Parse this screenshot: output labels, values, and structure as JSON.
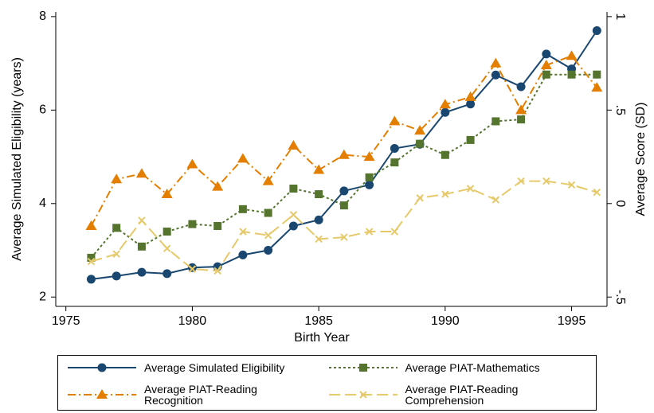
{
  "chart_data": {
    "type": "line",
    "x_label": "Birth Year",
    "y_label": "Average Simulated Eligibility (years)",
    "y2_label": "Average Score (SD)",
    "x": [
      1976,
      1977,
      1978,
      1979,
      1980,
      1981,
      1982,
      1983,
      1984,
      1985,
      1986,
      1987,
      1988,
      1989,
      1990,
      1991,
      1992,
      1993,
      1994,
      1995,
      1996
    ],
    "xlim": [
      1974.6,
      1996.4
    ],
    "xticks": [
      1975,
      1980,
      1985,
      1990,
      1995
    ],
    "ylim": [
      1.8,
      8.1
    ],
    "yticks": [
      2,
      4,
      6,
      8
    ],
    "y2lim": [
      -0.55,
      1.025
    ],
    "y2ticks": [
      {
        "value": -0.5,
        "label": "-.5"
      },
      0,
      {
        "value": 0.5,
        "label": ".5"
      },
      1
    ],
    "series": [
      {
        "name": "Average Simulated Eligibility",
        "color": "#1a476f",
        "marker": "circle",
        "dash": "solid",
        "axis": "y",
        "values": [
          2.38,
          2.45,
          2.53,
          2.5,
          2.63,
          2.65,
          2.9,
          3.0,
          3.52,
          3.65,
          4.27,
          4.4,
          5.18,
          5.27,
          5.95,
          6.13,
          6.75,
          6.5,
          7.2,
          6.88,
          7.7
        ]
      },
      {
        "name": "Average PIAT-Mathematics",
        "color": "#55752f",
        "marker": "square",
        "dash": "dot",
        "axis": "y2",
        "values": [
          -0.29,
          -0.13,
          -0.23,
          -0.15,
          -0.11,
          -0.12,
          -0.03,
          -0.05,
          0.08,
          0.05,
          -0.01,
          0.14,
          0.22,
          0.32,
          0.26,
          0.34,
          0.44,
          0.45,
          0.69,
          0.69,
          0.69
        ]
      },
      {
        "name": "Average PIAT-Reading Recognition",
        "color": "#e37e00",
        "marker": "triangle",
        "dash": "dashdot",
        "axis": "y2",
        "values": [
          -0.12,
          0.13,
          0.16,
          0.05,
          0.21,
          0.09,
          0.24,
          0.12,
          0.31,
          0.18,
          0.26,
          0.25,
          0.44,
          0.39,
          0.53,
          0.57,
          0.75,
          0.5,
          0.74,
          0.79,
          0.62
        ]
      },
      {
        "name": "Average PIAT-Reading Comprehension",
        "color": "#e6c96a",
        "marker": "x",
        "dash": "longdash",
        "axis": "y2",
        "values": [
          -0.31,
          -0.27,
          -0.09,
          -0.24,
          -0.35,
          -0.36,
          -0.15,
          -0.17,
          -0.06,
          -0.19,
          -0.18,
          -0.15,
          -0.15,
          0.03,
          0.05,
          0.08,
          0.02,
          0.12,
          0.12,
          0.1,
          0.06
        ]
      }
    ]
  }
}
